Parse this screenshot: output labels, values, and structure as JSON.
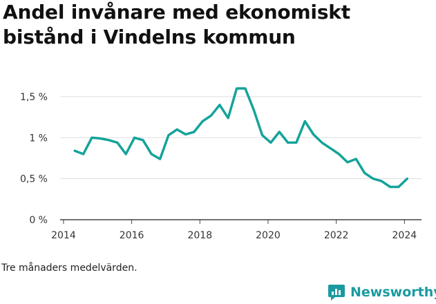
{
  "title": "Andel invånare med ekonomiskt bistånd i Vindelns kommun",
  "footnote": "Tre månaders medelvärden.",
  "brand": {
    "name": "Newsworthy",
    "icon": "newsworthy-logo-icon",
    "color": "#1a9aa0"
  },
  "colors": {
    "line": "#14a39a",
    "grid": "#dddddd",
    "axis": "#444444"
  },
  "chart_data": {
    "type": "line",
    "title": "Andel invånare med ekonomiskt bistånd i Vindelns kommun",
    "xlabel": "",
    "ylabel": "",
    "xlim": [
      2013.9,
      2024.5
    ],
    "ylim": [
      0,
      1.6
    ],
    "x_ticks": [
      2014,
      2016,
      2018,
      2020,
      2022,
      2024
    ],
    "x_tick_labels": [
      "2014",
      "2016",
      "2018",
      "2020",
      "2022",
      "2024"
    ],
    "y_ticks": [
      0,
      0.5,
      1,
      1.5
    ],
    "y_tick_labels": [
      "0 %",
      "0,5 %",
      "1 %",
      "1,5 %"
    ],
    "grid": true,
    "legend": "none",
    "series": [
      {
        "x": [
          2014.33,
          2014.58,
          2014.83,
          2015.08,
          2015.33,
          2015.58,
          2015.83,
          2016.08,
          2016.33,
          2016.58,
          2016.83,
          2017.08,
          2017.33,
          2017.58,
          2017.83,
          2018.08,
          2018.33,
          2018.58,
          2018.83,
          2019.08,
          2019.33,
          2019.58,
          2019.83,
          2020.08,
          2020.33,
          2020.58,
          2020.83,
          2021.08,
          2021.33,
          2021.58,
          2021.83,
          2022.08,
          2022.33,
          2022.58,
          2022.83,
          2023.08,
          2023.33,
          2023.58,
          2023.83,
          2024.08
        ],
        "y": [
          0.84,
          0.8,
          1.0,
          0.99,
          0.97,
          0.94,
          0.8,
          1.0,
          0.97,
          0.8,
          0.74,
          1.03,
          1.1,
          1.04,
          1.07,
          1.2,
          1.27,
          1.4,
          1.24,
          1.6,
          1.6,
          1.34,
          1.03,
          0.94,
          1.07,
          0.94,
          0.94,
          1.2,
          1.04,
          0.94,
          0.87,
          0.8,
          0.7,
          0.74,
          0.57,
          0.5,
          0.47,
          0.4,
          0.4,
          0.5
        ]
      }
    ]
  }
}
